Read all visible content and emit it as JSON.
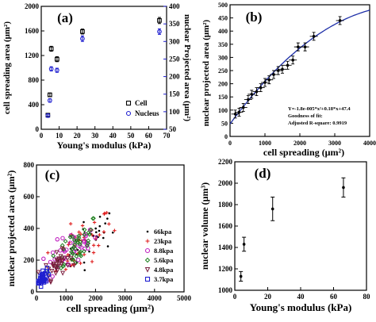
{
  "chart_data": [
    {
      "panel_label": "(a)",
      "type": "scatter",
      "xlabel": "Young's modulus (kPa)",
      "ylabel": "cell spreading area (μm²)",
      "ylabel_right": "nuclear Projected area (μm²)",
      "xlim": [
        0,
        70
      ],
      "xticks": [
        0,
        10,
        20,
        30,
        40,
        50,
        60,
        70
      ],
      "ylim": [
        0,
        2000
      ],
      "yticks": [
        0,
        400,
        800,
        1200,
        1600,
        2000
      ],
      "ylim_right": [
        50,
        400
      ],
      "yticks_right": [
        50,
        100,
        150,
        200,
        250,
        300,
        350,
        400
      ],
      "legend": "bottom-right",
      "series": [
        {
          "name": "Cell",
          "marker": "square",
          "color": "#000000",
          "axis": "left",
          "points": [
            {
              "x": 3.7,
              "y": 230,
              "err": 20
            },
            {
              "x": 4.8,
              "y": 560,
              "err": 30
            },
            {
              "x": 5.6,
              "y": 1310,
              "err": 40
            },
            {
              "x": 8.8,
              "y": 1140,
              "err": 40
            },
            {
              "x": 23,
              "y": 1590,
              "err": 40
            },
            {
              "x": 66,
              "y": 1770,
              "err": 50
            }
          ]
        },
        {
          "name": "Nucleus",
          "marker": "circle",
          "color": "#1f1fd0",
          "axis": "right",
          "points": [
            {
              "x": 3.7,
              "y": 89,
              "err": 5
            },
            {
              "x": 4.8,
              "y": 132,
              "err": 5
            },
            {
              "x": 5.6,
              "y": 222,
              "err": 6
            },
            {
              "x": 8.8,
              "y": 218,
              "err": 6
            },
            {
              "x": 23,
              "y": 308,
              "err": 8
            },
            {
              "x": 66,
              "y": 328,
              "err": 8
            }
          ]
        }
      ]
    },
    {
      "panel_label": "(b)",
      "type": "scatter",
      "xlabel": "cell spreading (μm²)",
      "ylabel": "nuclear projected area (μm²)",
      "xlim": [
        0,
        4000
      ],
      "xticks": [
        0,
        1000,
        2000,
        3000,
        4000
      ],
      "ylim": [
        0,
        500
      ],
      "yticks": [
        0,
        50,
        100,
        150,
        200,
        250,
        300,
        350,
        400,
        450,
        500
      ],
      "fit": {
        "a": -1.8e-05,
        "b": 0.18,
        "c": 47.4,
        "color": "#1e2fa8"
      },
      "annotation": [
        "Y=-1.8e-005*x²+0.18*x+47.4",
        "Goodness of fit:",
        "Adjusted R-square: 0.9919"
      ],
      "points": [
        {
          "x": 150,
          "y": 85
        },
        {
          "x": 260,
          "y": 92
        },
        {
          "x": 380,
          "y": 110
        },
        {
          "x": 520,
          "y": 140
        },
        {
          "x": 620,
          "y": 160
        },
        {
          "x": 760,
          "y": 170
        },
        {
          "x": 880,
          "y": 185
        },
        {
          "x": 1000,
          "y": 205
        },
        {
          "x": 1120,
          "y": 215
        },
        {
          "x": 1250,
          "y": 235
        },
        {
          "x": 1380,
          "y": 250
        },
        {
          "x": 1500,
          "y": 255
        },
        {
          "x": 1650,
          "y": 270
        },
        {
          "x": 1800,
          "y": 290
        },
        {
          "x": 1950,
          "y": 340
        },
        {
          "x": 2150,
          "y": 340
        },
        {
          "x": 2400,
          "y": 380
        },
        {
          "x": 3150,
          "y": 440
        }
      ]
    },
    {
      "panel_label": "(c)",
      "type": "scatter",
      "xlabel": "cell spreading (μm²)",
      "ylabel": "nuclear projected area (μm²)",
      "xlim": [
        0,
        5000
      ],
      "xticks": [
        0,
        1000,
        2000,
        3000,
        4000,
        5000
      ],
      "ylim": [
        0,
        800
      ],
      "yticks": [
        0,
        200,
        400,
        600,
        800
      ],
      "legend": "bottom-right",
      "series": [
        {
          "name": "66kpa",
          "marker": "dot",
          "color": "#000000",
          "center": [
            1800,
            330
          ],
          "spread": [
            900,
            110
          ],
          "n": 40
        },
        {
          "name": "23kpa",
          "marker": "plus",
          "color": "#e02020",
          "center": [
            1500,
            290
          ],
          "spread": [
            900,
            120
          ],
          "n": 45
        },
        {
          "name": "8.8kpa",
          "marker": "circle",
          "color": "#c020c0",
          "center": [
            1200,
            260
          ],
          "spread": [
            700,
            100
          ],
          "n": 40
        },
        {
          "name": "5.6kpa",
          "marker": "diamond",
          "color": "#208020",
          "center": [
            1300,
            290
          ],
          "spread": [
            700,
            110
          ],
          "n": 45
        },
        {
          "name": "4.8kpa",
          "marker": "triangle",
          "color": "#7a1f3f",
          "center": [
            700,
            170
          ],
          "spread": [
            350,
            60
          ],
          "n": 35
        },
        {
          "name": "3.7kpa",
          "marker": "square",
          "color": "#1f1fd0",
          "center": [
            200,
            90
          ],
          "spread": [
            130,
            40
          ],
          "n": 40
        }
      ]
    },
    {
      "panel_label": "(d)",
      "type": "scatter",
      "xlabel": "Young's modulus (kPa)",
      "ylabel": "nuclear volume (μm³)",
      "xlim": [
        0,
        80
      ],
      "xticks": [
        0,
        20,
        40,
        60,
        80
      ],
      "ylim": [
        1000,
        2200
      ],
      "yticks": [
        1000,
        1200,
        1400,
        1600,
        1800,
        2000,
        2200
      ],
      "points": [
        {
          "x": 3.7,
          "y": 1130,
          "err": 45
        },
        {
          "x": 5.6,
          "y": 1430,
          "err": 65
        },
        {
          "x": 23,
          "y": 1760,
          "err": 110
        },
        {
          "x": 66,
          "y": 1960,
          "err": 90
        }
      ]
    }
  ]
}
